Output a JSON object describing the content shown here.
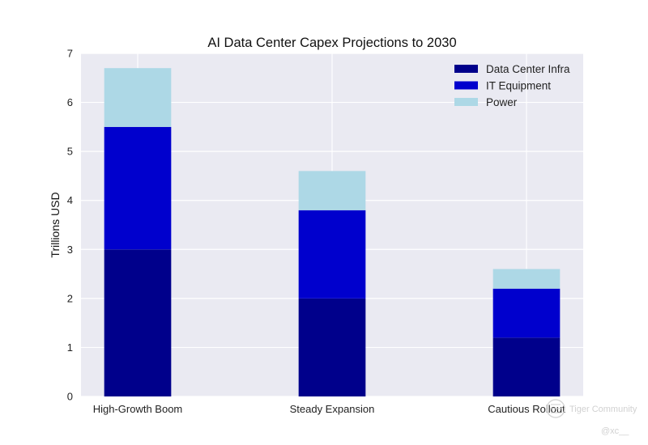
{
  "chart_data": {
    "type": "bar",
    "stacked": true,
    "title": "AI Data Center Capex Projections to 2030",
    "xlabel": "",
    "ylabel": "Trillions USD",
    "categories": [
      "High-Growth Boom",
      "Steady Expansion",
      "Cautious Rollout"
    ],
    "series": [
      {
        "name": "Data Center Infra",
        "color": "#00008b",
        "values": [
          3.0,
          2.0,
          1.2
        ]
      },
      {
        "name": "IT Equipment",
        "color": "#0000cd",
        "values": [
          2.5,
          1.8,
          1.0
        ]
      },
      {
        "name": "Power",
        "color": "#add8e6",
        "values": [
          1.2,
          0.8,
          0.4
        ]
      }
    ],
    "ylim": [
      0,
      7
    ],
    "yticks": [
      0,
      1,
      2,
      3,
      4,
      5,
      6,
      7
    ],
    "grid": true,
    "legend_position": "top-right",
    "background": "#eaeaf2",
    "grid_color": "#ffffff"
  },
  "watermark": {
    "brand": "Tiger Community",
    "handle": "@xc__",
    "icon": "tiger-logo-icon"
  }
}
